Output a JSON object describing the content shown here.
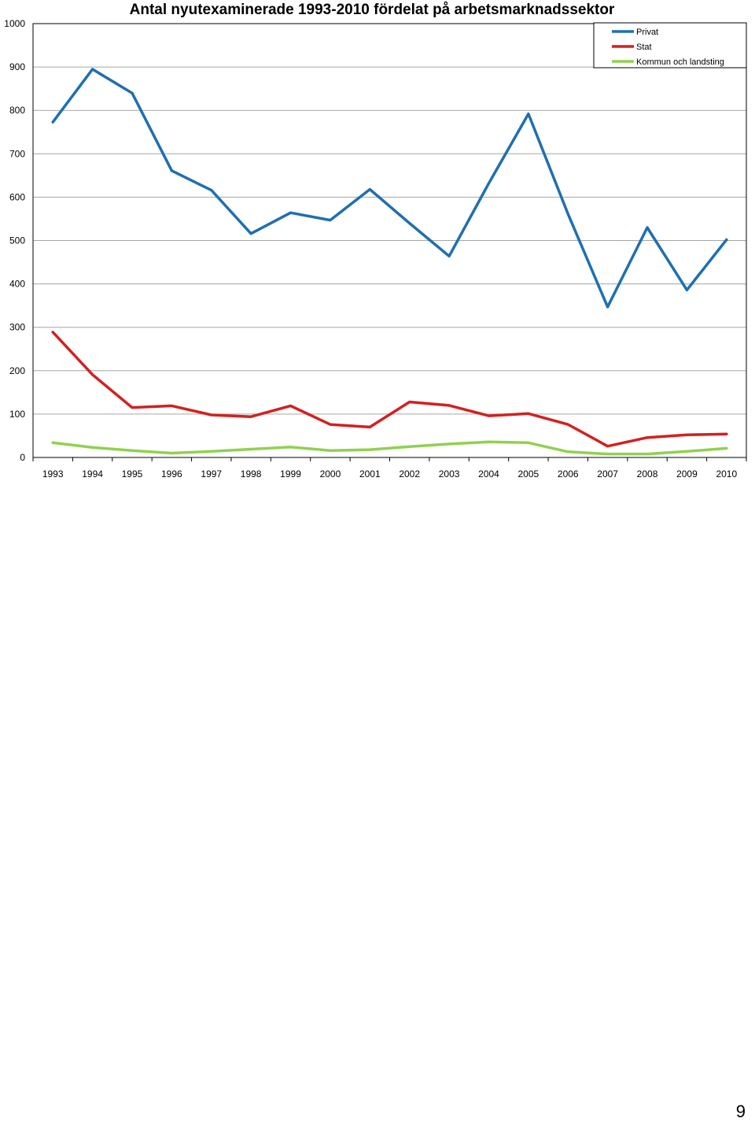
{
  "chart_data": {
    "type": "line",
    "title": "Antal nyutexaminerade 1993-2010 fördelat på arbetsmarknadssektor",
    "xlabel": "",
    "ylabel": "",
    "ylim": [
      0,
      1000
    ],
    "yticks": [
      0,
      100,
      200,
      300,
      400,
      500,
      600,
      700,
      800,
      900,
      1000
    ],
    "grid": true,
    "legend_position": "top-right",
    "categories": [
      "1993",
      "1994",
      "1995",
      "1996",
      "1997",
      "1998",
      "1999",
      "2000",
      "2001",
      "2002",
      "2003",
      "2004",
      "2005",
      "2006",
      "2007",
      "2008",
      "2009",
      "2010"
    ],
    "series": [
      {
        "name": "Privat",
        "color": "#1f6fb0",
        "values": [
          773,
          895,
          840,
          661,
          616,
          516,
          564,
          547,
          618,
          540,
          464,
          632,
          792,
          561,
          347,
          530,
          386,
          502
        ]
      },
      {
        "name": "Stat",
        "color": "#d42020",
        "values": [
          289,
          191,
          115,
          119,
          98,
          94,
          119,
          76,
          70,
          128,
          120,
          96,
          101,
          76,
          26,
          46,
          52,
          54
        ]
      },
      {
        "name": "Kommun och landsting",
        "color": "#92d050",
        "values": [
          34,
          23,
          16,
          10,
          14,
          19,
          24,
          16,
          18,
          25,
          31,
          36,
          34,
          13,
          8,
          8,
          14,
          21
        ]
      }
    ]
  },
  "page": {
    "number": "9"
  }
}
